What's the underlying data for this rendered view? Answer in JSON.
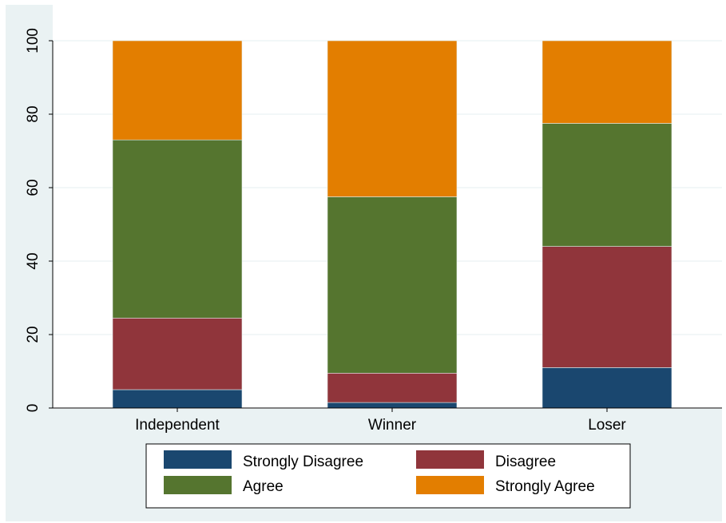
{
  "chart_data": {
    "type": "bar",
    "stacked": true,
    "categories": [
      "Independent",
      "Winner",
      "Loser"
    ],
    "series": [
      {
        "name": "Strongly Disagree",
        "color": "#1a476f",
        "values": [
          5,
          1.5,
          11
        ]
      },
      {
        "name": "Disagree",
        "color": "#90353b",
        "values": [
          19.5,
          8,
          33
        ]
      },
      {
        "name": "Agree",
        "color": "#55752f",
        "values": [
          48.5,
          48,
          33.5
        ]
      },
      {
        "name": "Strongly Agree",
        "color": "#e37e00",
        "values": [
          27,
          42.5,
          22.5
        ]
      }
    ],
    "yticks": [
      "0",
      "20",
      "40",
      "60",
      "80",
      "100"
    ],
    "ylim": [
      0,
      100
    ],
    "grid": true,
    "legend_position": "bottom"
  },
  "colors": {
    "background": "#eaf2f3",
    "plot_background": "#ffffff",
    "gridline": "#eaf2f3"
  }
}
